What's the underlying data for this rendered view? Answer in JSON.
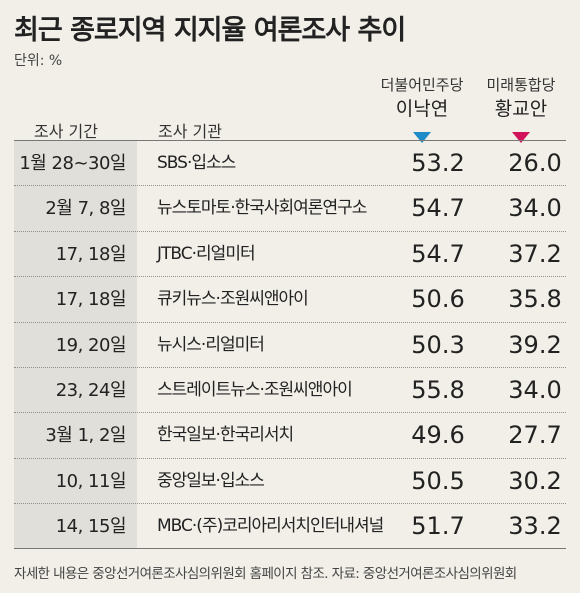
{
  "title": "최근 종로지역 지지율 여론조사 추이",
  "unit": "단위: %",
  "colors": {
    "lee": "#1f8bc7",
    "hwang": "#d1135b",
    "background": "#f1efe8",
    "date_column": "#e1dfd9"
  },
  "chart_data": {
    "type": "table",
    "columns": [
      "조사 기간",
      "조사 기관"
    ],
    "series": [
      {
        "party": "더불어민주당",
        "name": "이낙연",
        "values": [
          53.2,
          54.7,
          54.7,
          50.6,
          50.3,
          55.8,
          49.6,
          50.5,
          51.7
        ]
      },
      {
        "party": "미래통합당",
        "name": "황교안",
        "values": [
          26.0,
          34.0,
          37.2,
          35.8,
          39.2,
          34.0,
          27.7,
          30.2,
          33.2
        ]
      }
    ],
    "rows": [
      {
        "date": "1월 28~30일",
        "org": "SBS·입소스",
        "v1": "53.2",
        "v2": "26.0"
      },
      {
        "date": "2월 7, 8일",
        "org": "뉴스토마토·한국사회여론연구소",
        "v1": "54.7",
        "v2": "34.0"
      },
      {
        "date": "17, 18일",
        "org": "JTBC·리얼미터",
        "v1": "54.7",
        "v2": "37.2"
      },
      {
        "date": "17, 18일",
        "org": "큐키뉴스·조원씨앤아이",
        "v1": "50.6",
        "v2": "35.8"
      },
      {
        "date": "19, 20일",
        "org": "뉴시스·리얼미터",
        "v1": "50.3",
        "v2": "39.2"
      },
      {
        "date": "23, 24일",
        "org": "스트레이트뉴스·조원씨앤아이",
        "v1": "55.8",
        "v2": "34.0"
      },
      {
        "date": "3월 1, 2일",
        "org": "한국일보·한국리서치",
        "v1": "49.6",
        "v2": "27.7"
      },
      {
        "date": "10, 11일",
        "org": "중앙일보·입소스",
        "v1": "50.5",
        "v2": "30.2"
      },
      {
        "date": "14, 15일",
        "org": "MBC·(주)코리아리서치인터내셔널",
        "v1": "51.7",
        "v2": "33.2"
      }
    ]
  },
  "footer": "자세한 내용은 중앙선거여론조사심의위원회 홈페이지 참조. 자료: 중앙선거여론조사심의위원회"
}
